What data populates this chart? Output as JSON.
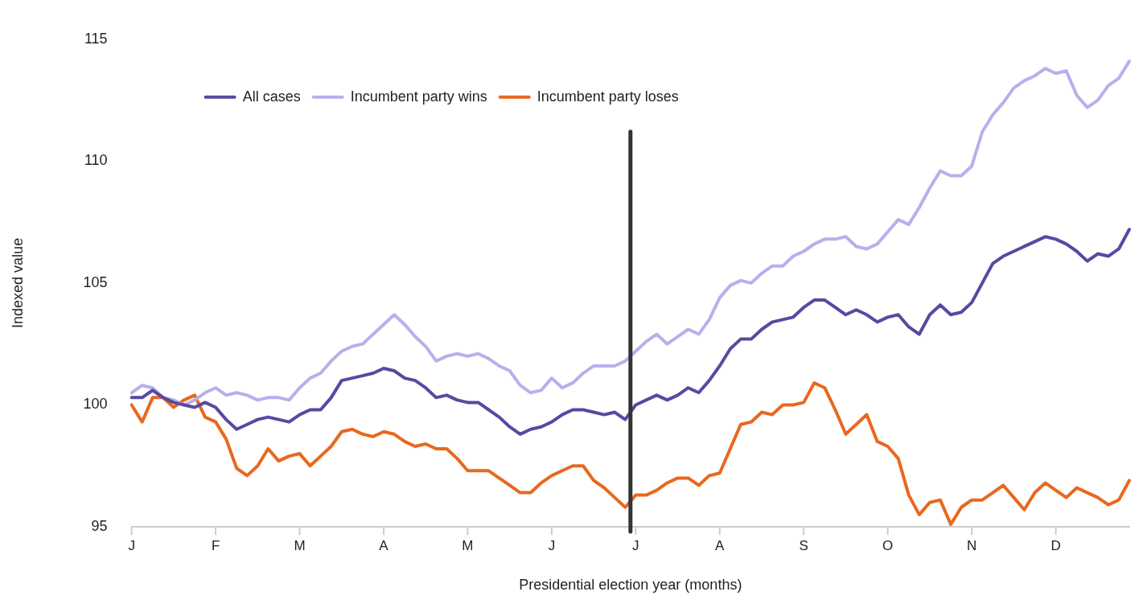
{
  "chart_data": {
    "type": "line",
    "xlabel": "Presidential election year (months)",
    "ylabel": "Indexed value",
    "categories": [
      "J",
      null,
      null,
      null,
      null,
      null,
      null,
      null,
      "F",
      null,
      null,
      null,
      null,
      null,
      null,
      null,
      "M",
      null,
      null,
      null,
      null,
      null,
      null,
      null,
      "A",
      null,
      null,
      null,
      null,
      null,
      null,
      null,
      "M",
      null,
      null,
      null,
      null,
      null,
      null,
      null,
      "J",
      null,
      null,
      null,
      null,
      null,
      null,
      null,
      "J",
      null,
      null,
      null,
      null,
      null,
      null,
      null,
      "A",
      null,
      null,
      null,
      null,
      null,
      null,
      null,
      "S",
      null,
      null,
      null,
      null,
      null,
      null,
      null,
      "O",
      null,
      null,
      null,
      null,
      null,
      null,
      null,
      "N",
      null,
      null,
      null,
      null,
      null,
      null,
      null,
      "D",
      null,
      null,
      null,
      null,
      null,
      null,
      null
    ],
    "ylim": [
      95,
      115
    ],
    "yticks": [
      95,
      100,
      105,
      110,
      115
    ],
    "grid": false,
    "legend": "top left",
    "marker": "none",
    "line_style": "solid",
    "series": [
      {
        "name": "All cases",
        "color": "#574aa0",
        "values": [
          100.3,
          100.3,
          100.6,
          100.3,
          100.1,
          100,
          99.9,
          100.1,
          99.9,
          99.4,
          99,
          99.2,
          99.4,
          99.5,
          99.4,
          99.3,
          99.6,
          99.8,
          99.8,
          100.3,
          101,
          101.1,
          101.2,
          101.3,
          101.5,
          101.4,
          101.1,
          101,
          100.7,
          100.3,
          100.4,
          100.2,
          100.1,
          100.1,
          99.8,
          99.5,
          99.1,
          98.8,
          99,
          99.1,
          99.3,
          99.6,
          99.8,
          99.8,
          99.7,
          99.6,
          99.7,
          99.4,
          100,
          100.2,
          100.4,
          100.2,
          100.4,
          100.7,
          100.5,
          101,
          101.6,
          102.3,
          102.7,
          102.7,
          103.1,
          103.4,
          103.5,
          103.6,
          104,
          104.3,
          104.3,
          104,
          103.7,
          103.9,
          103.7,
          103.4,
          103.6,
          103.7,
          103.2,
          102.9,
          103.7,
          104.1,
          103.7,
          103.8,
          104.2,
          105,
          105.8,
          106.1,
          106.3,
          106.5,
          106.7,
          106.9,
          106.8,
          106.6,
          106.3,
          105.9,
          106.2,
          106.1,
          106.4,
          107.2
        ]
      },
      {
        "name": "Incumbent party wins",
        "color": "#b8b0ec",
        "values": [
          100.5,
          100.8,
          100.7,
          100.3,
          100.2,
          100,
          100.2,
          100.5,
          100.7,
          100.4,
          100.5,
          100.4,
          100.2,
          100.3,
          100.3,
          100.2,
          100.7,
          101.1,
          101.3,
          101.8,
          102.2,
          102.4,
          102.5,
          102.9,
          103.3,
          103.7,
          103.3,
          102.8,
          102.4,
          101.8,
          102,
          102.1,
          102,
          102.1,
          101.9,
          101.6,
          101.4,
          100.8,
          100.5,
          100.6,
          101.1,
          100.7,
          100.9,
          101.3,
          101.6,
          101.6,
          101.6,
          101.8,
          102.2,
          102.6,
          102.9,
          102.5,
          102.8,
          103.1,
          102.9,
          103.5,
          104.4,
          104.9,
          105.1,
          105,
          105.4,
          105.7,
          105.7,
          106.1,
          106.3,
          106.6,
          106.8,
          106.8,
          106.9,
          106.5,
          106.4,
          106.6,
          107.1,
          107.6,
          107.4,
          108.1,
          108.9,
          109.6,
          109.4,
          109.4,
          109.8,
          111.2,
          111.9,
          112.4,
          113,
          113.3,
          113.5,
          113.8,
          113.6,
          113.7,
          112.7,
          112.2,
          112.5,
          113.1,
          113.4,
          114.1
        ]
      },
      {
        "name": "Incumbent party loses",
        "color": "#e8681e",
        "values": [
          100,
          99.3,
          100.3,
          100.3,
          99.9,
          100.2,
          100.4,
          99.5,
          99.3,
          98.6,
          97.4,
          97.1,
          97.5,
          98.2,
          97.7,
          97.9,
          98,
          97.5,
          97.9,
          98.3,
          98.9,
          99,
          98.8,
          98.7,
          98.9,
          98.8,
          98.5,
          98.3,
          98.4,
          98.2,
          98.2,
          97.8,
          97.3,
          97.3,
          97.3,
          97,
          96.7,
          96.4,
          96.4,
          96.8,
          97.1,
          97.3,
          97.5,
          97.5,
          96.9,
          96.6,
          96.2,
          95.8,
          96.3,
          96.3,
          96.5,
          96.8,
          97,
          97,
          96.7,
          97.1,
          97.2,
          98.2,
          99.2,
          99.3,
          99.7,
          99.6,
          100,
          100,
          100.1,
          100.9,
          100.7,
          99.8,
          98.8,
          99.2,
          99.6,
          98.5,
          98.3,
          97.8,
          96.3,
          95.5,
          96,
          96.1,
          95.1,
          95.8,
          96.1,
          96.1,
          96.4,
          96.7,
          96.2,
          95.7,
          96.4,
          96.8,
          96.5,
          96.2,
          96.6,
          96.4,
          96.2,
          95.9,
          96.1,
          96.9
        ]
      }
    ]
  }
}
